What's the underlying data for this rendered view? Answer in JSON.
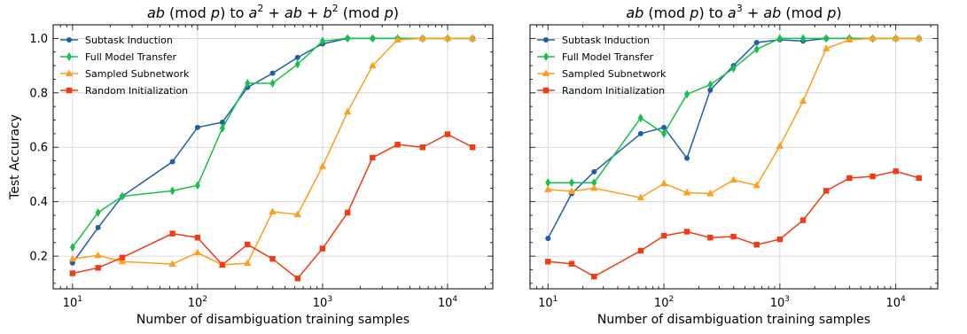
{
  "chart_data": [
    {
      "type": "line",
      "title_parts": [
        [
          "ab",
          "i"
        ],
        [
          " (mod ",
          "n"
        ],
        [
          "p",
          "i"
        ],
        [
          ") to ",
          "n"
        ],
        [
          "a",
          "i"
        ],
        [
          "2",
          "sup"
        ],
        [
          " + ",
          "n"
        ],
        [
          "ab",
          "i"
        ],
        [
          " + ",
          "n"
        ],
        [
          "b",
          "i"
        ],
        [
          "2",
          "sup"
        ],
        [
          " (mod ",
          "n"
        ],
        [
          "p",
          "i"
        ],
        [
          ")",
          "n"
        ]
      ],
      "xlabel": "Number of disambiguation training samples",
      "ylabel": "Test Accuracy",
      "xscale": "log",
      "xlim": [
        7,
        23000
      ],
      "ylim": [
        0.08,
        1.05
      ],
      "yticks": [
        "0.2",
        "0.4",
        "0.6",
        "0.8",
        "1.0"
      ],
      "xticks": [
        10,
        100,
        1000,
        10000
      ],
      "xtick_labels": [
        [
          "10",
          "1"
        ],
        [
          "10",
          "2"
        ],
        [
          "10",
          "3"
        ],
        [
          "10",
          "4"
        ]
      ],
      "legend_position": "top-left",
      "grid": true,
      "x": [
        10,
        16,
        25,
        63,
        100,
        158,
        251,
        398,
        631,
        1000,
        1585,
        2512,
        3981,
        6310,
        10000,
        15849
      ],
      "series": [
        {
          "name": "Subtask Induction",
          "color": "#1f5fa8",
          "marker": "circle",
          "values": [
            0.175,
            0.305,
            0.42,
            0.547,
            0.673,
            0.692,
            0.82,
            0.872,
            0.93,
            0.98,
            1.0,
            1.0,
            1.0,
            1.0,
            1.0,
            1.0
          ]
        },
        {
          "name": "Full Model Transfer",
          "color": "#17c049",
          "marker": "diamond",
          "values": [
            0.233,
            0.36,
            0.42,
            0.44,
            0.46,
            0.67,
            0.835,
            0.835,
            0.905,
            0.99,
            1.0,
            1.0,
            1.0,
            1.0,
            1.0,
            1.0
          ]
        },
        {
          "name": "Sampled Subnetwork",
          "color": "#ff9e1b",
          "marker": "triangle",
          "values": [
            0.19,
            0.203,
            0.18,
            0.171,
            0.213,
            0.168,
            0.174,
            0.363,
            0.353,
            0.53,
            0.73,
            0.9,
            0.995,
            1.0,
            1.0,
            1.0
          ]
        },
        {
          "name": "Random Initialization",
          "color": "#f03b13",
          "marker": "square",
          "values": [
            0.137,
            0.157,
            0.195,
            0.283,
            0.268,
            0.168,
            0.243,
            0.19,
            0.118,
            0.228,
            0.36,
            0.562,
            0.61,
            0.6,
            0.648,
            0.6
          ]
        }
      ]
    },
    {
      "type": "line",
      "title_parts": [
        [
          "ab",
          "i"
        ],
        [
          " (mod ",
          "n"
        ],
        [
          "p",
          "i"
        ],
        [
          ") to ",
          "n"
        ],
        [
          "a",
          "i"
        ],
        [
          "3",
          "sup"
        ],
        [
          " + ",
          "n"
        ],
        [
          "ab",
          "i"
        ],
        [
          " (mod ",
          "n"
        ],
        [
          "p",
          "i"
        ],
        [
          ")",
          "n"
        ]
      ],
      "xlabel": "Number of disambiguation training samples",
      "ylabel": "",
      "xscale": "log",
      "xlim": [
        7,
        23000
      ],
      "ylim": [
        0.08,
        1.05
      ],
      "yticks": [
        "",
        "",
        "",
        "",
        ""
      ],
      "xticks": [
        10,
        100,
        1000,
        10000
      ],
      "xtick_labels": [
        [
          "10",
          "1"
        ],
        [
          "10",
          "2"
        ],
        [
          "10",
          "3"
        ],
        [
          "10",
          "4"
        ]
      ],
      "legend_position": "top-left",
      "grid": true,
      "x": [
        10,
        16,
        25,
        63,
        100,
        158,
        251,
        398,
        631,
        1000,
        1585,
        2512,
        3981,
        6310,
        10000,
        15849
      ],
      "series": [
        {
          "name": "Subtask Induction",
          "color": "#1f5fa8",
          "marker": "circle",
          "values": [
            0.265,
            0.43,
            0.51,
            0.65,
            0.673,
            0.56,
            0.81,
            0.9,
            0.985,
            0.995,
            0.99,
            1.0,
            1.0,
            1.0,
            1.0,
            1.0
          ]
        },
        {
          "name": "Full Model Transfer",
          "color": "#17c049",
          "marker": "diamond",
          "values": [
            0.47,
            0.47,
            0.47,
            0.708,
            0.65,
            0.795,
            0.83,
            0.89,
            0.96,
            1.0,
            1.0,
            1.0,
            1.0,
            1.0,
            1.0,
            1.0
          ]
        },
        {
          "name": "Sampled Subnetwork",
          "color": "#ff9e1b",
          "marker": "triangle",
          "values": [
            0.445,
            0.438,
            0.45,
            0.415,
            0.467,
            0.433,
            0.43,
            0.48,
            0.46,
            0.605,
            0.77,
            0.963,
            0.995,
            1.0,
            1.0,
            1.0
          ]
        },
        {
          "name": "Random Initialization",
          "color": "#f03b13",
          "marker": "square",
          "values": [
            0.18,
            0.172,
            0.125,
            0.22,
            0.275,
            0.29,
            0.268,
            0.272,
            0.242,
            0.262,
            0.332,
            0.44,
            0.487,
            0.493,
            0.512,
            0.487
          ]
        }
      ]
    }
  ]
}
